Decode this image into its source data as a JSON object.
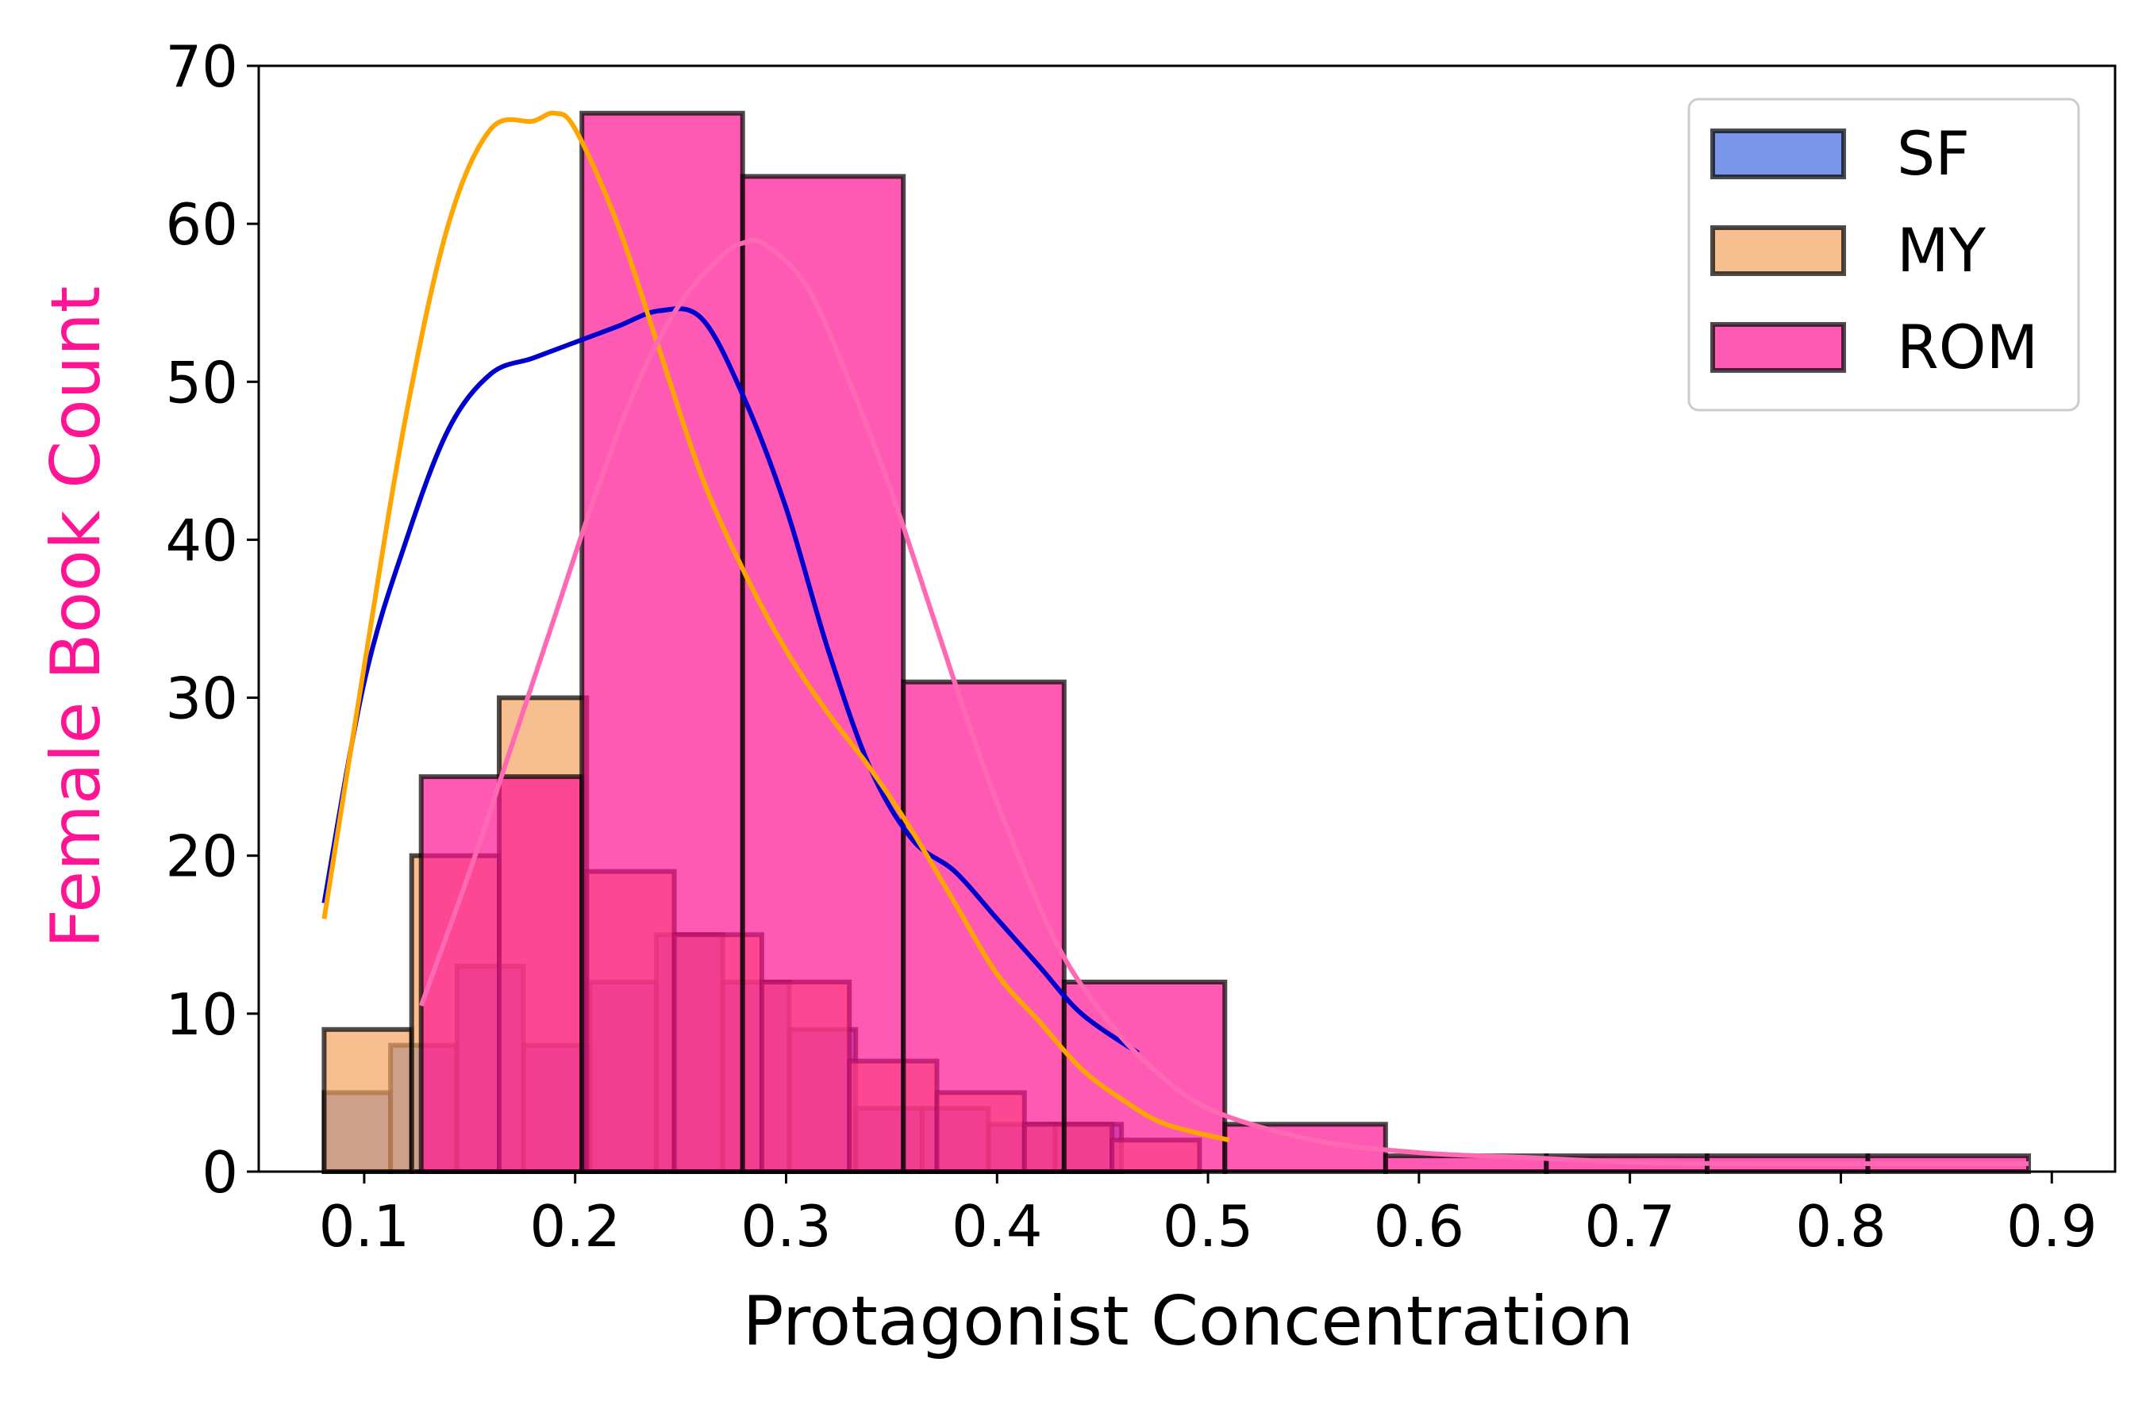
{
  "chart_data": {
    "type": "histogram",
    "xlabel": "Protagonist Concentration",
    "ylabel": "Female Book Count",
    "ylabel_color": "#ff1493",
    "xlim": [
      0.05,
      0.93
    ],
    "ylim": [
      0,
      70
    ],
    "xticks": [
      {
        "value": 0.1,
        "label": "0.1"
      },
      {
        "value": 0.2,
        "label": "0.2"
      },
      {
        "value": 0.3,
        "label": "0.3"
      },
      {
        "value": 0.4,
        "label": "0.4"
      },
      {
        "value": 0.5,
        "label": "0.5"
      },
      {
        "value": 0.6,
        "label": "0.6"
      },
      {
        "value": 0.7,
        "label": "0.7"
      },
      {
        "value": 0.8,
        "label": "0.8"
      },
      {
        "value": 0.9,
        "label": "0.9"
      }
    ],
    "yticks": [
      {
        "value": 0,
        "label": "0"
      },
      {
        "value": 10,
        "label": "10"
      },
      {
        "value": 20,
        "label": "20"
      },
      {
        "value": 30,
        "label": "30"
      },
      {
        "value": 40,
        "label": "40"
      },
      {
        "value": 50,
        "label": "50"
      },
      {
        "value": 60,
        "label": "60"
      },
      {
        "value": 70,
        "label": "70"
      }
    ],
    "legend_position": "top-right",
    "series": [
      {
        "name": "SF",
        "color": "#4169e1",
        "kde_color": "#0000cd",
        "bin_edges": [
          0.081,
          0.1125,
          0.144,
          0.1755,
          0.207,
          0.2385,
          0.27,
          0.3015,
          0.333,
          0.3645,
          0.396,
          0.4275,
          0.459
        ],
        "counts": [
          5,
          8,
          13,
          8,
          12,
          15,
          12,
          9,
          4,
          4,
          3,
          3
        ],
        "kde": {
          "x": [
            0.081,
            0.1,
            0.12,
            0.14,
            0.16,
            0.18,
            0.2,
            0.22,
            0.24,
            0.26,
            0.28,
            0.3,
            0.32,
            0.34,
            0.36,
            0.38,
            0.4,
            0.42,
            0.44,
            0.467
          ],
          "y": [
            17,
            31,
            40,
            47,
            50.5,
            51.5,
            52.5,
            53.5,
            54.5,
            54,
            49,
            42,
            33,
            25.5,
            21,
            19,
            16,
            13,
            10,
            7.5
          ]
        }
      },
      {
        "name": "MY",
        "color": "#f4a460",
        "kde_color": "#ffa500",
        "bin_edges": [
          0.081,
          0.1225,
          0.164,
          0.2055,
          0.247,
          0.2885,
          0.33,
          0.3715,
          0.413,
          0.4545,
          0.496
        ],
        "counts": [
          9,
          20,
          30,
          19,
          15,
          12,
          7,
          5,
          3,
          2
        ],
        "kde": {
          "x": [
            0.081,
            0.1,
            0.12,
            0.14,
            0.16,
            0.18,
            0.19,
            0.2,
            0.22,
            0.24,
            0.26,
            0.28,
            0.3,
            0.32,
            0.34,
            0.36,
            0.38,
            0.4,
            0.42,
            0.44,
            0.46,
            0.48,
            0.51
          ],
          "y": [
            16,
            32,
            48,
            60,
            66,
            66.5,
            67,
            66,
            60,
            52,
            44,
            38,
            33,
            29,
            25.5,
            21.5,
            17,
            12.5,
            9.5,
            6.5,
            4.5,
            3,
            2
          ]
        }
      },
      {
        "name": "ROM",
        "color": "#ff1493",
        "kde_color": "#ff69b4",
        "bin_edges": [
          0.127,
          0.2032,
          0.2794,
          0.3556,
          0.4318,
          0.508,
          0.5842,
          0.6604,
          0.7366,
          0.8128,
          0.889
        ],
        "counts": [
          25,
          67,
          63,
          31,
          12,
          3,
          1,
          1,
          1,
          1
        ],
        "kde": {
          "x": [
            0.127,
            0.15,
            0.17,
            0.19,
            0.21,
            0.23,
            0.25,
            0.27,
            0.28,
            0.29,
            0.31,
            0.33,
            0.35,
            0.37,
            0.39,
            0.41,
            0.43,
            0.45,
            0.47,
            0.5,
            0.55,
            0.6,
            0.65,
            0.7,
            0.75,
            0.8,
            0.85,
            0.889
          ],
          "y": [
            10.5,
            19,
            27,
            35,
            43,
            50,
            55,
            58,
            58.8,
            58.7,
            56,
            50,
            43,
            35,
            27,
            20,
            14,
            10,
            7,
            4,
            2,
            1.2,
            0.9,
            0.6,
            0.5,
            0.5,
            0.5,
            0.5
          ]
        }
      }
    ]
  }
}
